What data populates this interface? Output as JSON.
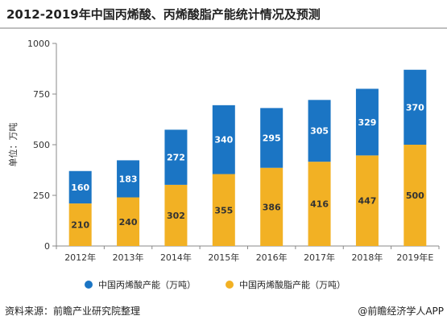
{
  "title": "2012-2019年中国丙烯酸、丙烯酸脂产能统计情况及预测",
  "footer": {
    "source": "资料来源：前瞻产业研究院整理",
    "brand": "@前瞻经济学人APP"
  },
  "colors": {
    "series_bottom": "#f2b124",
    "series_top": "#1b75c4",
    "axis": "#888888",
    "text": "#333333"
  },
  "chart_data": {
    "type": "bar",
    "stacked": true,
    "categories": [
      "2012年",
      "2013年",
      "2014年",
      "2015年",
      "2016年",
      "2017年",
      "2018年",
      "2019年E"
    ],
    "series": [
      {
        "name": "中国丙烯酸脂产能（万吨）",
        "values": [
          210,
          240,
          302,
          355,
          386,
          416,
          447,
          500
        ]
      },
      {
        "name": "中国丙烯酸产能（万吨）",
        "values": [
          160,
          183,
          272,
          340,
          295,
          305,
          329,
          370
        ]
      }
    ],
    "ylabel": "单位：万吨",
    "ylim": [
      0,
      1000
    ],
    "yticks": [
      0,
      250,
      500,
      750,
      1000
    ],
    "legend": [
      "中国丙烯酸产能（万吨）",
      "中国丙烯酸脂产能（万吨）"
    ],
    "legend_position": "bottom",
    "grid": false
  }
}
